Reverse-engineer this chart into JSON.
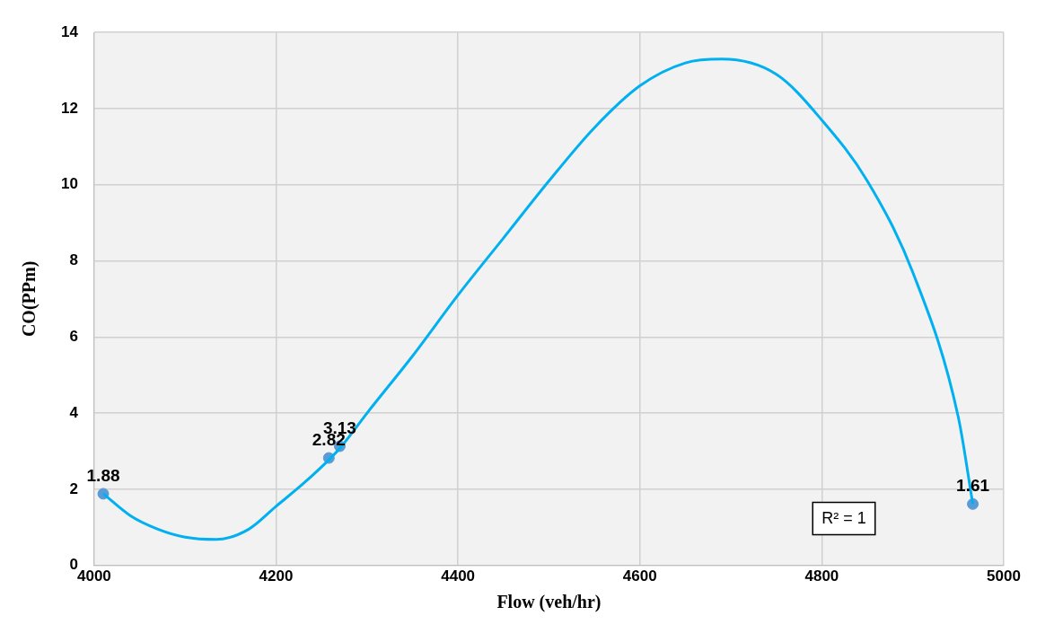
{
  "chart_data": {
    "type": "scatter",
    "xlabel": "Flow (veh/hr)",
    "ylabel": "CO(PPm)",
    "xlim": [
      4000,
      5000
    ],
    "xticks": [
      4000,
      4200,
      4400,
      4600,
      4800,
      5000
    ],
    "ylim": [
      0,
      14
    ],
    "yticks": [
      0,
      2,
      4,
      6,
      8,
      10,
      12,
      14
    ],
    "grid": true,
    "legend": false,
    "series": [
      {
        "type": "line",
        "color": "#00b0f0",
        "marker": "none",
        "x": [
          4010,
          4040,
          4070,
          4100,
          4134,
          4170,
          4200,
          4230,
          4260,
          4272,
          4300,
          4350,
          4400,
          4450,
          4500,
          4550,
          4600,
          4650,
          4690,
          4750,
          4800,
          4850,
          4900,
          4950,
          4966
        ],
        "values": [
          1.88,
          1.3,
          0.95,
          0.74,
          0.68,
          0.95,
          1.55,
          2.15,
          2.82,
          3.13,
          4.0,
          5.5,
          7.1,
          8.6,
          10.1,
          11.5,
          12.6,
          13.2,
          13.3,
          12.9,
          11.7,
          10.1,
          7.7,
          3.9,
          1.61
        ]
      },
      {
        "color": "#5b9bd5",
        "marker": "circle",
        "x": [
          4010,
          4258,
          4270,
          4966
        ],
        "values": [
          1.88,
          2.82,
          3.13,
          1.61
        ],
        "value_labels": [
          "1.88",
          "2.82",
          "3.13",
          "1.61"
        ]
      }
    ],
    "annotations": [
      "R² = 1"
    ]
  }
}
